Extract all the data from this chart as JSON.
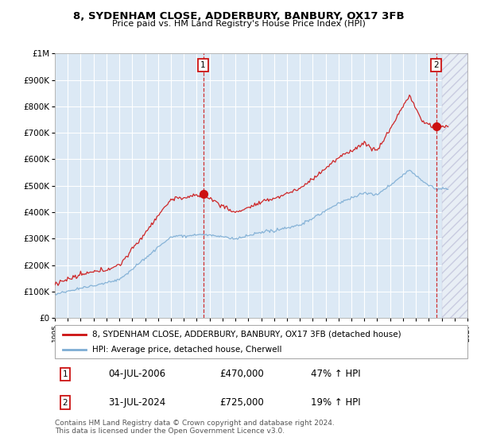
{
  "title": "8, SYDENHAM CLOSE, ADDERBURY, BANBURY, OX17 3FB",
  "subtitle": "Price paid vs. HM Land Registry's House Price Index (HPI)",
  "legend_line1": "8, SYDENHAM CLOSE, ADDERBURY, BANBURY, OX17 3FB (detached house)",
  "legend_line2": "HPI: Average price, detached house, Cherwell",
  "annotation1_date": "04-JUL-2006",
  "annotation1_price": "£470,000",
  "annotation1_hpi": "47% ↑ HPI",
  "annotation2_date": "31-JUL-2024",
  "annotation2_price": "£725,000",
  "annotation2_hpi": "19% ↑ HPI",
  "footer": "Contains HM Land Registry data © Crown copyright and database right 2024.\nThis data is licensed under the Open Government Licence v3.0.",
  "hpi_color": "#7dadd4",
  "price_color": "#cc1111",
  "plot_bg": "#dce9f5",
  "ylim": [
    0,
    1000000
  ],
  "yticks": [
    0,
    100000,
    200000,
    300000,
    400000,
    500000,
    600000,
    700000,
    800000,
    900000,
    1000000
  ],
  "xlim_min": 1995.0,
  "xlim_max": 2027.0,
  "sale1_year": 2006.5,
  "sale1_value": 470000,
  "sale2_year": 2024.58,
  "sale2_value": 725000,
  "hatch_start": 2025.0
}
